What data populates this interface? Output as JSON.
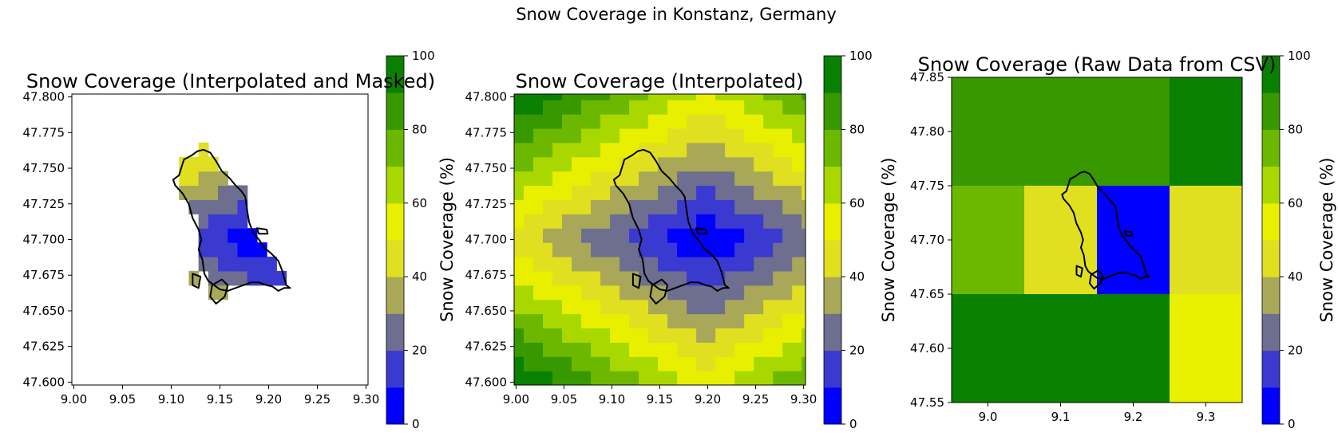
{
  "figure": {
    "title": "Snow Coverage in Konstanz, Germany"
  },
  "colormap": {
    "levels": [
      0,
      10,
      20,
      30,
      40,
      50,
      60,
      70,
      80,
      90,
      100
    ],
    "colors": [
      "#0000ff",
      "#3a3ad0",
      "#6e6e90",
      "#a8a858",
      "#e0e020",
      "#e8f000",
      "#a8d800",
      "#6cb800",
      "#389800",
      "#0a8000"
    ],
    "outline_color": "#000000"
  },
  "chart_data": [
    {
      "type": "heatmap",
      "title": "Snow Coverage (Interpolated and Masked)",
      "xlabel": "",
      "ylabel": "",
      "xlim": [
        8.998,
        9.302
      ],
      "ylim": [
        47.598,
        47.802
      ],
      "xticks": [
        "9.00",
        "9.05",
        "9.10",
        "9.15",
        "9.20",
        "9.25",
        "9.30"
      ],
      "yticks": [
        "47.600",
        "47.625",
        "47.650",
        "47.675",
        "47.700",
        "47.725",
        "47.750",
        "47.775",
        "47.800"
      ],
      "masked": true,
      "field": {
        "center": [
          9.2,
          47.7
        ],
        "center_value": 5,
        "ring_step": 10,
        "x_scale": 0.045,
        "y_scale": 0.018,
        "cell": 0.01
      },
      "colorbar": {
        "label": "",
        "ticks": [
          "0",
          "20",
          "40",
          "60",
          "80",
          "100"
        ]
      }
    },
    {
      "type": "heatmap",
      "title": "Snow Coverage (Interpolated)",
      "xlabel": "",
      "ylabel": "Snow Coverage (%)",
      "xlim": [
        8.998,
        9.302
      ],
      "ylim": [
        47.598,
        47.802
      ],
      "xticks": [
        "9.00",
        "9.05",
        "9.10",
        "9.15",
        "9.20",
        "9.25",
        "9.30"
      ],
      "yticks": [
        "47.600",
        "47.625",
        "47.650",
        "47.675",
        "47.700",
        "47.725",
        "47.750",
        "47.775",
        "47.800"
      ],
      "masked": false,
      "field": {
        "center": [
          9.2,
          47.7
        ],
        "center_value": 5,
        "ring_step": 10,
        "x_scale": 0.045,
        "y_scale": 0.018,
        "cell": 0.01
      },
      "colorbar": {
        "label": "Snow Coverage (%)",
        "ticks": [
          "0",
          "20",
          "40",
          "60",
          "80",
          "100"
        ]
      }
    },
    {
      "type": "heatmap",
      "title": "Snow Coverage (Raw Data from CSV)",
      "xlabel": "",
      "ylabel": "",
      "xlim": [
        8.95,
        9.35
      ],
      "ylim": [
        47.55,
        47.85
      ],
      "xticks": [
        "9.0",
        "9.1",
        "9.2",
        "9.3"
      ],
      "yticks": [
        "47.55",
        "47.60",
        "47.65",
        "47.70",
        "47.75",
        "47.80",
        "47.85"
      ],
      "cells": [
        {
          "x": [
            8.95,
            9.25
          ],
          "y": [
            47.75,
            47.85
          ],
          "value": 85
        },
        {
          "x": [
            9.25,
            9.35
          ],
          "y": [
            47.75,
            47.85
          ],
          "value": 95
        },
        {
          "x": [
            8.95,
            9.05
          ],
          "y": [
            47.65,
            47.75
          ],
          "value": 75
        },
        {
          "x": [
            9.05,
            9.15
          ],
          "y": [
            47.65,
            47.75
          ],
          "value": 45
        },
        {
          "x": [
            9.15,
            9.25
          ],
          "y": [
            47.65,
            47.75
          ],
          "value": 5
        },
        {
          "x": [
            9.25,
            9.35
          ],
          "y": [
            47.65,
            47.75
          ],
          "value": 45
        },
        {
          "x": [
            8.95,
            9.25
          ],
          "y": [
            47.55,
            47.65
          ],
          "value": 95
        },
        {
          "x": [
            9.25,
            9.35
          ],
          "y": [
            47.55,
            47.65
          ],
          "value": 55
        }
      ],
      "colorbar": {
        "label": "Snow Coverage (%)",
        "ticks": [
          "0",
          "20",
          "40",
          "60",
          "80",
          "100"
        ]
      }
    }
  ],
  "outline": {
    "main": [
      [
        9.108,
        47.745
      ],
      [
        9.113,
        47.756
      ],
      [
        9.121,
        47.759
      ],
      [
        9.127,
        47.762
      ],
      [
        9.133,
        47.763
      ],
      [
        9.14,
        47.761
      ],
      [
        9.146,
        47.755
      ],
      [
        9.152,
        47.748
      ],
      [
        9.16,
        47.743
      ],
      [
        9.166,
        47.738
      ],
      [
        9.172,
        47.734
      ],
      [
        9.176,
        47.73
      ],
      [
        9.178,
        47.72
      ],
      [
        9.18,
        47.712
      ],
      [
        9.184,
        47.705
      ],
      [
        9.19,
        47.7
      ],
      [
        9.196,
        47.694
      ],
      [
        9.203,
        47.69
      ],
      [
        9.21,
        47.685
      ],
      [
        9.214,
        47.678
      ],
      [
        9.218,
        47.668
      ],
      [
        9.222,
        47.666
      ],
      [
        9.216,
        47.666
      ],
      [
        9.21,
        47.664
      ],
      [
        9.204,
        47.667
      ],
      [
        9.198,
        47.668
      ],
      [
        9.19,
        47.67
      ],
      [
        9.182,
        47.67
      ],
      [
        9.174,
        47.668
      ],
      [
        9.166,
        47.666
      ],
      [
        9.158,
        47.664
      ],
      [
        9.15,
        47.665
      ],
      [
        9.144,
        47.668
      ],
      [
        9.138,
        47.671
      ],
      [
        9.134,
        47.676
      ],
      [
        9.132,
        47.686
      ],
      [
        9.128,
        47.693
      ],
      [
        9.131,
        47.7
      ],
      [
        9.128,
        47.707
      ],
      [
        9.122,
        47.715
      ],
      [
        9.118,
        47.725
      ],
      [
        9.112,
        47.732
      ],
      [
        9.104,
        47.738
      ],
      [
        9.102,
        47.742
      ],
      [
        9.108,
        47.745
      ]
    ],
    "islands": [
      [
        [
          9.142,
          47.668
        ],
        [
          9.152,
          47.672
        ],
        [
          9.158,
          47.668
        ],
        [
          9.155,
          47.66
        ],
        [
          9.146,
          47.655
        ],
        [
          9.14,
          47.66
        ],
        [
          9.142,
          47.668
        ]
      ],
      [
        [
          9.122,
          47.676
        ],
        [
          9.13,
          47.674
        ],
        [
          9.128,
          47.666
        ],
        [
          9.122,
          47.668
        ],
        [
          9.122,
          47.676
        ]
      ],
      [
        [
          9.188,
          47.708
        ],
        [
          9.198,
          47.707
        ],
        [
          9.199,
          47.704
        ],
        [
          9.19,
          47.704
        ],
        [
          9.188,
          47.708
        ]
      ]
    ]
  }
}
